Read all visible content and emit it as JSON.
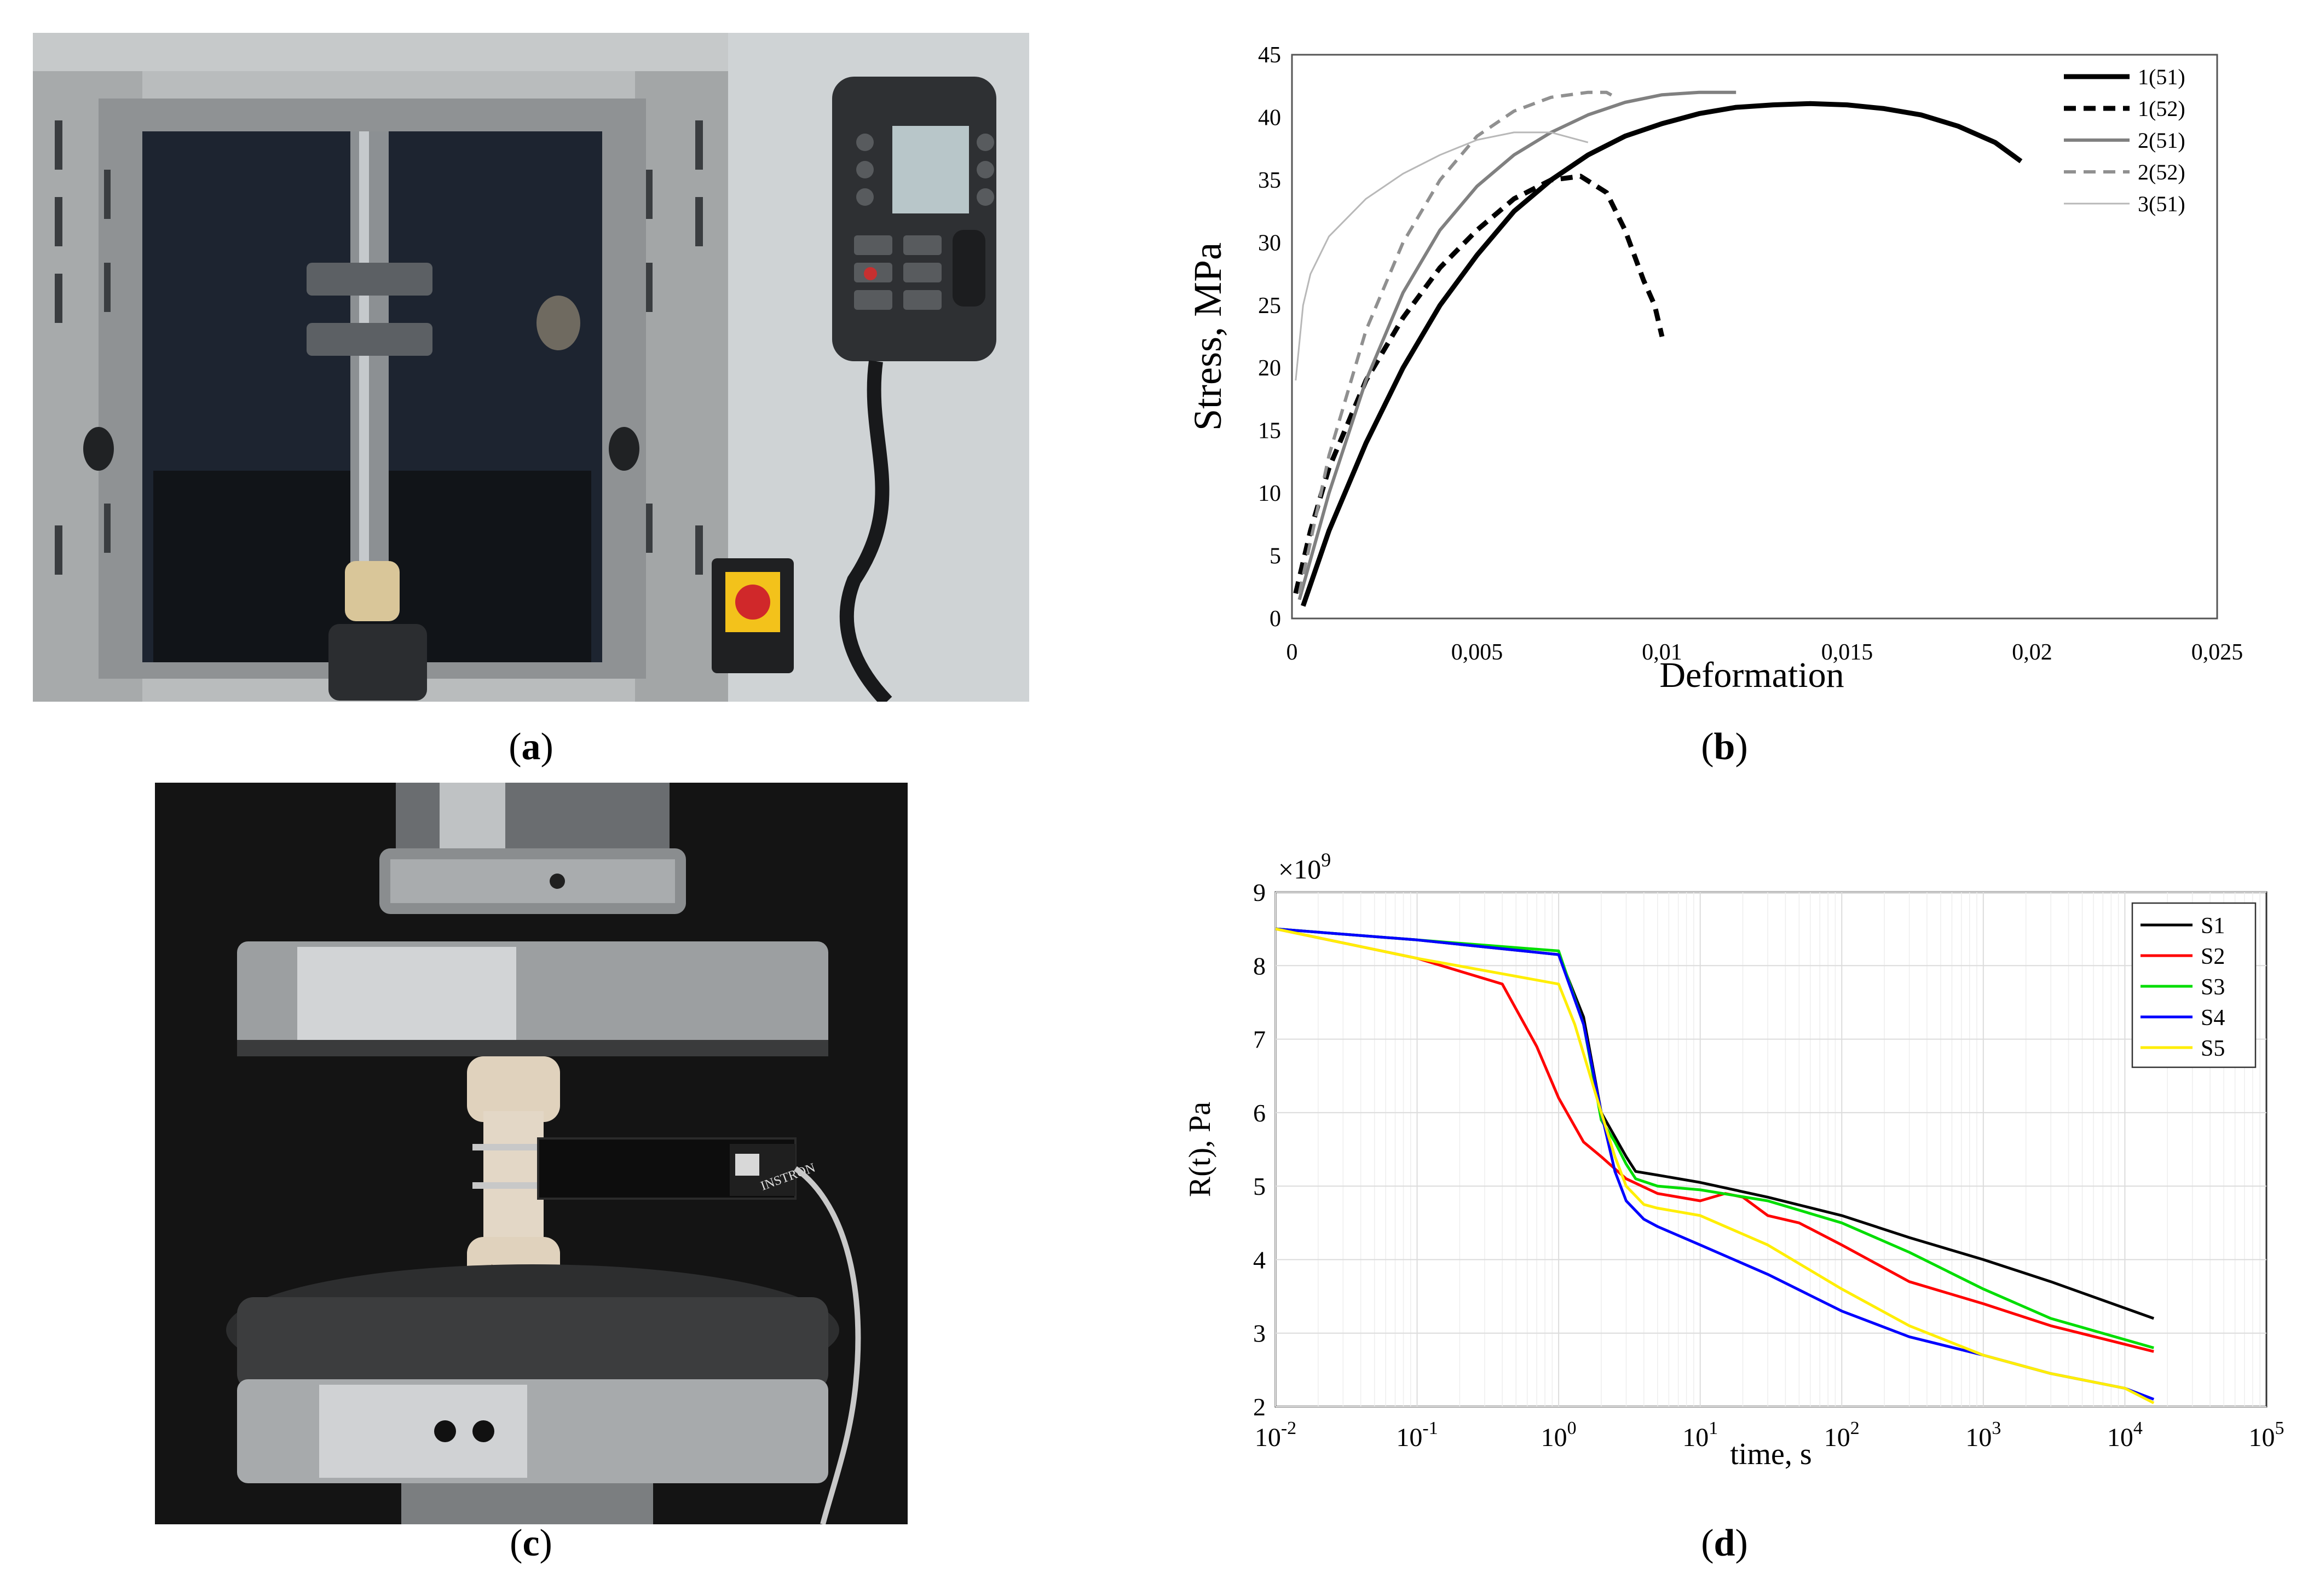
{
  "captions": {
    "a": {
      "open": "(",
      "letter": "a",
      "close": ")"
    },
    "b": {
      "open": "(",
      "letter": "b",
      "close": ")"
    },
    "c": {
      "open": "(",
      "letter": "c",
      "close": ")"
    },
    "d": {
      "open": "(",
      "letter": "d",
      "close": ")"
    }
  },
  "photo_c": {
    "extensometer_brand": "INSTRON"
  },
  "chart_data": [
    {
      "type": "line",
      "panel": "b",
      "title": "",
      "xlabel": "Deformation",
      "ylabel": "Stress, MPa",
      "xlim": [
        0,
        0.025
      ],
      "ylim": [
        0,
        45
      ],
      "xticks": [
        "0",
        "0,005",
        "0,01",
        "0,015",
        "0,02",
        "0,025"
      ],
      "yticks": [
        "0",
        "5",
        "10",
        "15",
        "20",
        "25",
        "30",
        "35",
        "40",
        "45"
      ],
      "grid": false,
      "legend_position": "top-right",
      "series": [
        {
          "name": "1(51)",
          "color": "#000000",
          "style": "solid-thick",
          "x": [
            0.0003,
            0.001,
            0.002,
            0.003,
            0.004,
            0.005,
            0.006,
            0.007,
            0.008,
            0.009,
            0.01,
            0.011,
            0.012,
            0.013,
            0.014,
            0.015,
            0.016,
            0.017,
            0.018,
            0.019,
            0.0197
          ],
          "y": [
            1,
            7,
            14,
            20,
            25,
            29,
            32.5,
            35,
            37,
            38.5,
            39.5,
            40.3,
            40.8,
            41,
            41.1,
            41,
            40.7,
            40.2,
            39.3,
            38,
            36.5
          ]
        },
        {
          "name": "1(52)",
          "color": "#000000",
          "style": "dashed-thick",
          "x": [
            0.0001,
            0.0005,
            0.001,
            0.002,
            0.003,
            0.004,
            0.005,
            0.006,
            0.007,
            0.0078,
            0.0085,
            0.009,
            0.0095,
            0.0098,
            0.01
          ],
          "y": [
            2,
            7,
            12,
            19,
            24,
            28,
            31,
            33.5,
            35,
            35.3,
            34,
            31,
            27,
            25,
            22.5
          ]
        },
        {
          "name": "2(51)",
          "color": "#808080",
          "style": "solid",
          "x": [
            0.0002,
            0.001,
            0.002,
            0.003,
            0.004,
            0.005,
            0.006,
            0.007,
            0.008,
            0.009,
            0.01,
            0.011,
            0.012
          ],
          "y": [
            1.5,
            10,
            19,
            26,
            31,
            34.5,
            37,
            38.8,
            40.2,
            41.2,
            41.8,
            42,
            42
          ]
        },
        {
          "name": "2(52)",
          "color": "#909090",
          "style": "dashed",
          "x": [
            0.0002,
            0.001,
            0.002,
            0.003,
            0.004,
            0.005,
            0.006,
            0.007,
            0.008,
            0.0085,
            0.0088
          ],
          "y": [
            2,
            13,
            23,
            30,
            35,
            38.5,
            40.5,
            41.6,
            42,
            42,
            41.5
          ]
        },
        {
          "name": "3(51)",
          "color": "#b8b8b8",
          "style": "solid-thin",
          "x": [
            0.0001,
            0.0003,
            0.0005,
            0.001,
            0.0015,
            0.002,
            0.003,
            0.004,
            0.005,
            0.006,
            0.007,
            0.008
          ],
          "y": [
            19,
            25,
            27.5,
            30.5,
            32,
            33.5,
            35.5,
            37,
            38.2,
            38.8,
            38.8,
            38
          ]
        }
      ]
    },
    {
      "type": "line",
      "panel": "d",
      "title": "",
      "xlabel": "time, s",
      "ylabel": "R(t), Pa",
      "x_scale": "log",
      "xlim": [
        0.01,
        100000
      ],
      "ylim": [
        2,
        9
      ],
      "y_multiplier": "×10",
      "y_multiplier_exp": "9",
      "xticks": [
        {
          "base": "10",
          "exp": "-2"
        },
        {
          "base": "10",
          "exp": "-1"
        },
        {
          "base": "10",
          "exp": "0"
        },
        {
          "base": "10",
          "exp": "1"
        },
        {
          "base": "10",
          "exp": "2"
        },
        {
          "base": "10",
          "exp": "3"
        },
        {
          "base": "10",
          "exp": "4"
        },
        {
          "base": "10",
          "exp": "5"
        }
      ],
      "yticks": [
        "2",
        "3",
        "4",
        "5",
        "6",
        "7",
        "8",
        "9"
      ],
      "grid": true,
      "legend_position": "top-right",
      "series": [
        {
          "name": "S1",
          "color": "#000000",
          "x": [
            0.01,
            0.1,
            1,
            1.5,
            2,
            3,
            3.5,
            5,
            10,
            30,
            100,
            300,
            1000,
            3000,
            16000
          ],
          "y": [
            8.5,
            8.35,
            8.15,
            7.3,
            6,
            5.4,
            5.2,
            5.15,
            5.05,
            4.85,
            4.6,
            4.3,
            4.0,
            3.7,
            3.2
          ]
        },
        {
          "name": "S2",
          "color": "#ff0000",
          "x": [
            0.01,
            0.1,
            0.4,
            0.7,
            1,
            1.5,
            2,
            3,
            5,
            10,
            15,
            20,
            30,
            50,
            100,
            300,
            1000,
            3000,
            16000
          ],
          "y": [
            8.5,
            8.1,
            7.75,
            6.9,
            6.2,
            5.6,
            5.4,
            5.1,
            4.9,
            4.8,
            4.9,
            4.85,
            4.6,
            4.5,
            4.2,
            3.7,
            3.4,
            3.1,
            2.75
          ]
        },
        {
          "name": "S3",
          "color": "#00dd00",
          "x": [
            0.01,
            0.1,
            1,
            1.5,
            2,
            2.5,
            3,
            3.5,
            5,
            10,
            30,
            100,
            300,
            1000,
            3000,
            16000
          ],
          "y": [
            8.5,
            8.35,
            8.2,
            7.2,
            5.9,
            5.6,
            5.3,
            5.1,
            5.0,
            4.95,
            4.8,
            4.5,
            4.1,
            3.6,
            3.2,
            2.8
          ]
        },
        {
          "name": "S4",
          "color": "#0000ff",
          "x": [
            0.01,
            0.1,
            1,
            1.5,
            2,
            2.5,
            3,
            4,
            5,
            10,
            30,
            100,
            300,
            1000,
            3000,
            10000,
            16000
          ],
          "y": [
            8.5,
            8.35,
            8.15,
            7.2,
            6.0,
            5.2,
            4.8,
            4.55,
            4.45,
            4.2,
            3.8,
            3.3,
            2.95,
            2.7,
            2.45,
            2.25,
            2.1
          ]
        },
        {
          "name": "S5",
          "color": "#ffee00",
          "x": [
            0.01,
            0.1,
            1,
            1.3,
            2,
            2.5,
            3,
            4,
            5,
            10,
            30,
            100,
            300,
            1000,
            3000,
            10000,
            16000
          ],
          "y": [
            8.5,
            8.1,
            7.75,
            7.2,
            6.0,
            5.4,
            5.0,
            4.75,
            4.7,
            4.6,
            4.2,
            3.6,
            3.1,
            2.7,
            2.45,
            2.25,
            2.05
          ]
        }
      ]
    }
  ]
}
